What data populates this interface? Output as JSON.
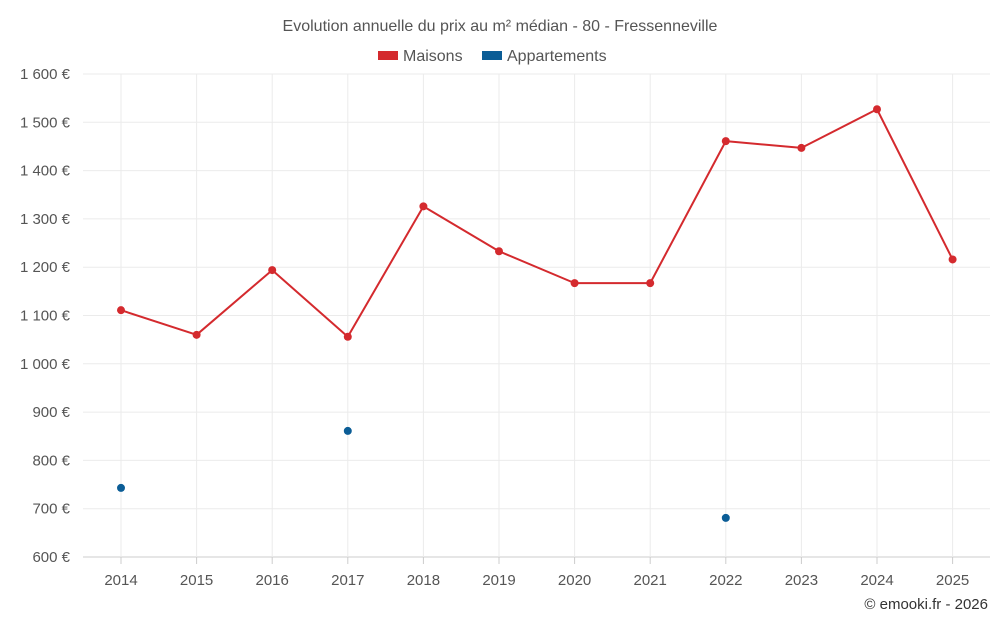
{
  "chart_data": {
    "type": "line",
    "title": "Evolution annuelle du prix au m² médian - 80 - Fressenneville",
    "x": [
      "2014",
      "2015",
      "2016",
      "2017",
      "2018",
      "2019",
      "2020",
      "2021",
      "2022",
      "2023",
      "2024",
      "2025"
    ],
    "series": [
      {
        "name": "Maisons",
        "color": "#d42a2e",
        "values": [
          1111,
          1060,
          1194,
          1056,
          1326,
          1233,
          1167,
          1167,
          1461,
          1447,
          1527,
          1216
        ]
      },
      {
        "name": "Appartements",
        "color": "#0b5d96",
        "values": [
          743,
          null,
          null,
          861,
          null,
          null,
          null,
          null,
          681,
          null,
          null,
          null
        ]
      }
    ],
    "yticks": [
      600,
      700,
      800,
      900,
      1000,
      1100,
      1200,
      1300,
      1400,
      1500,
      1600
    ],
    "ytick_labels": [
      "600 €",
      "700 €",
      "800 €",
      "900 €",
      "1 000 €",
      "1 100 €",
      "1 200 €",
      "1 300 €",
      "1 400 €",
      "1 500 €",
      "1 600 €"
    ],
    "ylim": [
      600,
      1600
    ],
    "xlabel": "",
    "ylabel": "",
    "grid": true,
    "legend_position": "top-center"
  },
  "credit": "© emooki.fr - 2026"
}
